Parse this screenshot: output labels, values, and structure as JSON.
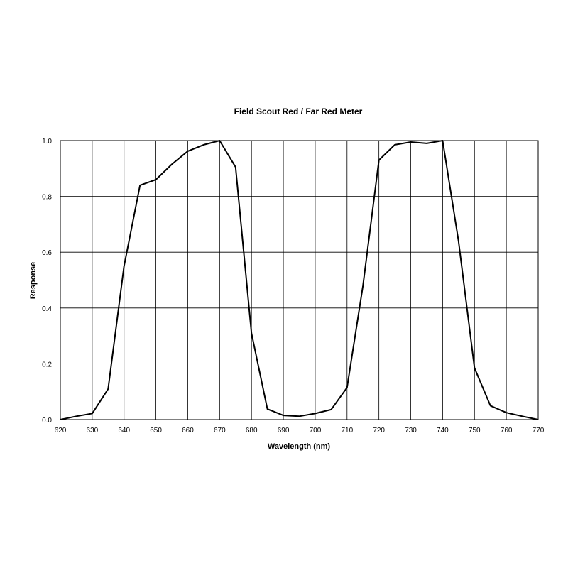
{
  "chart_data": {
    "type": "line",
    "title": "Field Scout Red / Far Red Meter",
    "xlabel": "Wavelength (nm)",
    "ylabel": "Response",
    "xlim": [
      620,
      770
    ],
    "ylim": [
      0.0,
      1.0
    ],
    "x_ticks": [
      620,
      630,
      640,
      650,
      660,
      670,
      680,
      690,
      700,
      710,
      720,
      730,
      740,
      750,
      760,
      770
    ],
    "y_ticks": [
      0.0,
      0.2,
      0.4,
      0.6,
      0.8,
      1.0
    ],
    "x_tick_labels": [
      "620",
      "630",
      "640",
      "650",
      "660",
      "670",
      "680",
      "690",
      "700",
      "710",
      "720",
      "730",
      "740",
      "750",
      "760",
      "770"
    ],
    "y_tick_labels": [
      "0.0",
      "0.2",
      "0.4",
      "0.6",
      "0.8",
      "1.0"
    ],
    "grid": true,
    "legend": false,
    "line_color": "#000000",
    "series": [
      {
        "x": [
          620,
          625,
          630,
          635,
          640,
          645,
          650,
          655,
          660,
          665,
          670,
          675,
          680,
          685,
          690,
          695,
          700,
          705,
          710,
          715,
          720,
          725,
          730,
          735,
          740,
          745,
          750,
          755,
          760,
          765,
          770
        ],
        "values": [
          0.0,
          0.012,
          0.022,
          0.11,
          0.55,
          0.84,
          0.86,
          0.915,
          0.962,
          0.985,
          1.0,
          0.905,
          0.31,
          0.038,
          0.015,
          0.012,
          0.022,
          0.036,
          0.115,
          0.48,
          0.93,
          0.985,
          0.995,
          0.99,
          1.0,
          0.64,
          0.185,
          0.05,
          0.025,
          0.012,
          0.0
        ]
      }
    ]
  }
}
